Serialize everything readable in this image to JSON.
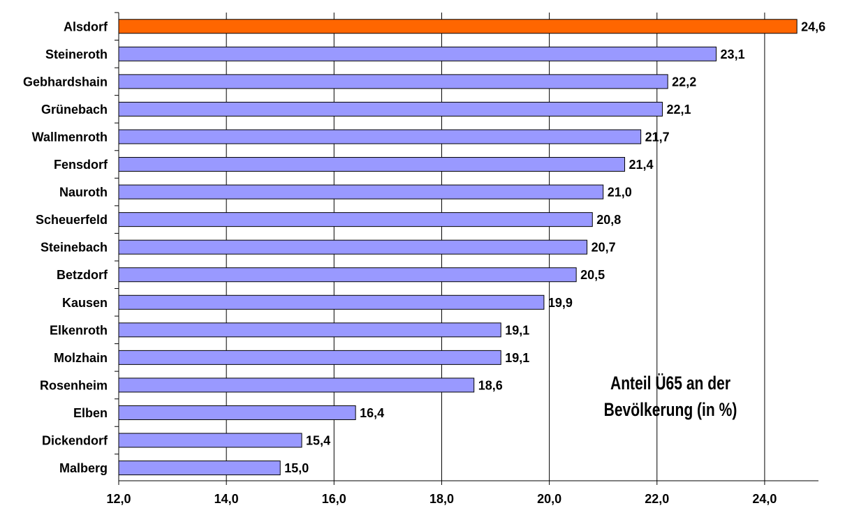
{
  "chart_data": {
    "type": "bar",
    "orientation": "horizontal",
    "title": "Anteil Ü65 an der Bevölkerung (in %)",
    "title_lines": [
      "Anteil Ü65 an der",
      "Bevölkerung (in %)"
    ],
    "xlabel": "",
    "ylabel": "",
    "xlim": [
      12,
      25
    ],
    "x_ticks": [
      12,
      14,
      16,
      18,
      20,
      22,
      24
    ],
    "x_tick_labels": [
      "12,0",
      "14,0",
      "16,0",
      "18,0",
      "20,0",
      "22,0",
      "24,0"
    ],
    "grid": "vertical",
    "categories": [
      "Alsdorf",
      "Steineroth",
      "Gebhardshain",
      "Grünebach",
      "Wallmenroth",
      "Fensdorf",
      "Nauroth",
      "Scheuerfeld",
      "Steinebach",
      "Betzdorf",
      "Kausen",
      "Elkenroth",
      "Molzhain",
      "Rosenheim",
      "Elben",
      "Dickendorf",
      "Malberg"
    ],
    "values": [
      24.6,
      23.1,
      22.2,
      22.1,
      21.7,
      21.4,
      21.0,
      20.8,
      20.7,
      20.5,
      19.9,
      19.1,
      19.1,
      18.6,
      16.4,
      15.4,
      15.0
    ],
    "value_labels": [
      "24,6",
      "23,1",
      "22,2",
      "22,1",
      "21,7",
      "21,4",
      "21,0",
      "20,8",
      "20,7",
      "20,5",
      "19,9",
      "19,1",
      "19,1",
      "18,6",
      "16,4",
      "15,4",
      "15,0"
    ],
    "highlight_category": "Alsdorf",
    "colors": {
      "bar": "#9999ff",
      "highlight": "#ff6600",
      "grid": "#000000",
      "text": "#000000"
    }
  }
}
